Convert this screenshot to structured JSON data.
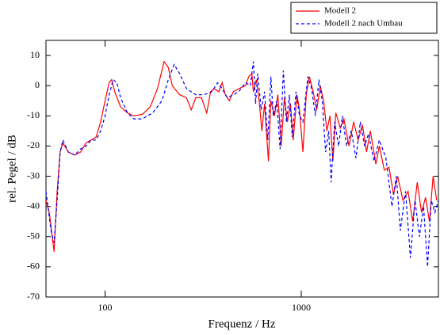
{
  "chart_data": {
    "type": "line",
    "xlabel": "Frequenz / Hz",
    "ylabel": "rel. Pegel / dB",
    "xlim": [
      50,
      5000
    ],
    "xticks": [
      100,
      1000
    ],
    "xscale": "log",
    "ylim": [
      -70,
      15
    ],
    "yticks": [
      -70,
      -60,
      -50,
      -40,
      -30,
      -20,
      -10,
      0,
      10
    ],
    "grid": false,
    "legend": "top-right",
    "series": [
      {
        "name": "Modell 2",
        "color": "#ff0000",
        "dash": "solid",
        "x": [
          50,
          52,
          55,
          57,
          59,
          61,
          65,
          70,
          75,
          80,
          85,
          90,
          95,
          100,
          105,
          108,
          112,
          120,
          130,
          140,
          155,
          170,
          185,
          200,
          210,
          220,
          240,
          260,
          275,
          290,
          310,
          330,
          345,
          360,
          380,
          395,
          410,
          430,
          450,
          480,
          520,
          540,
          560,
          570,
          590,
          610,
          630,
          650,
          680,
          700,
          730,
          760,
          790,
          820,
          850,
          880,
          910,
          950,
          980,
          1020,
          1060,
          1100,
          1150,
          1200,
          1250,
          1300,
          1350,
          1400,
          1450,
          1500,
          1580,
          1650,
          1750,
          1850,
          1950,
          2050,
          2150,
          2250,
          2400,
          2500,
          2650,
          2800,
          2950,
          3100,
          3300,
          3500,
          3700,
          3900,
          4100,
          4300,
          4500,
          4700,
          4900
        ],
        "values": [
          -38,
          -42,
          -55,
          -35,
          -22,
          -19,
          -22,
          -23,
          -22,
          -19,
          -18,
          -17,
          -12,
          -5,
          1,
          2,
          -2,
          -7,
          -9,
          -10,
          -9.5,
          -7,
          -1,
          8,
          6,
          0,
          -3,
          -4,
          -8,
          -4,
          -4,
          -9,
          -2,
          -1,
          -2,
          1,
          -3,
          -5,
          -2,
          -1,
          0,
          3,
          4,
          -2,
          2,
          -5,
          -15,
          -6,
          -25,
          -5,
          -10,
          -3,
          -20,
          -4,
          -12,
          -6,
          -18,
          -3,
          -8,
          -22,
          -3,
          3,
          -2,
          -8,
          0,
          -5,
          -15,
          -10,
          -25,
          -9,
          -14,
          -11,
          -20,
          -12,
          -18,
          -13,
          -22,
          -15,
          -26,
          -20,
          -28,
          -27,
          -36,
          -30,
          -38,
          -35,
          -45,
          -32,
          -42,
          -37,
          -45,
          -30,
          -38
        ]
      },
      {
        "name": "Modell 2 nach Umbau",
        "color": "#0000ff",
        "dash": "dashed",
        "x": [
          50,
          53,
          55,
          57,
          59,
          61,
          65,
          70,
          75,
          80,
          85,
          90,
          95,
          100,
          105,
          110,
          115,
          120,
          130,
          140,
          155,
          175,
          195,
          210,
          225,
          240,
          260,
          290,
          320,
          350,
          375,
          395,
          420,
          450,
          480,
          520,
          550,
          570,
          585,
          600,
          625,
          650,
          675,
          700,
          720,
          750,
          780,
          810,
          840,
          870,
          900,
          940,
          980,
          1020,
          1080,
          1130,
          1180,
          1230,
          1280,
          1330,
          1380,
          1420,
          1480,
          1550,
          1620,
          1700,
          1800,
          1900,
          2000,
          2100,
          2200,
          2350,
          2500,
          2700,
          2900,
          3050,
          3200,
          3400,
          3600,
          3800,
          4000,
          4200,
          4400,
          4600,
          4800,
          5000
        ],
        "values": [
          -35,
          -48,
          -52,
          -38,
          -22,
          -18,
          -22,
          -23,
          -21,
          -20,
          -18,
          -18,
          -15,
          -10,
          -3,
          2,
          1,
          -4,
          -9,
          -11,
          -11,
          -9,
          -5,
          2,
          7,
          4,
          -1,
          -3,
          -3,
          -2,
          1,
          -1,
          -4,
          -3,
          -2,
          1,
          0,
          8,
          -6,
          4,
          -8,
          -2,
          -18,
          3,
          -10,
          -5,
          -21,
          5,
          -12,
          -3,
          -17,
          -2,
          -10,
          -12,
          3,
          -1,
          -10,
          2,
          -5,
          -22,
          -15,
          -32,
          -12,
          -20,
          -10,
          -20,
          -15,
          -24,
          -12,
          -20,
          -16,
          -25,
          -18,
          -24,
          -40,
          -30,
          -48,
          -35,
          -57,
          -38,
          -50,
          -40,
          -60,
          -38,
          -42,
          -38
        ]
      }
    ]
  }
}
